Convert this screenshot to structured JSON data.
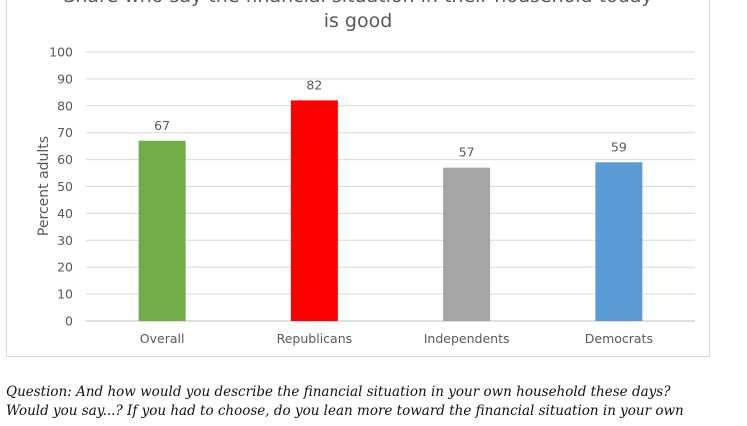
{
  "chart_data": {
    "type": "bar",
    "title_lines": [
      "Share who say the financial situation in their household today",
      "is good"
    ],
    "ylabel": "Percent adults",
    "xlabel": "",
    "ylim": [
      0,
      100
    ],
    "yticks": [
      0,
      10,
      20,
      30,
      40,
      50,
      60,
      70,
      80,
      90,
      100
    ],
    "grid": true,
    "categories": [
      "Overall",
      "Republicans",
      "Independents",
      "Democrats"
    ],
    "values": [
      67,
      82,
      57,
      59
    ],
    "colors": [
      "#70ad47",
      "#ff0000",
      "#a5a5a5",
      "#5b9bd5"
    ]
  },
  "footnote": {
    "line1": "Question: And how would you describe the financial situation in your own household these days?",
    "line2": "Would you say...? If you had to choose, do you lean more toward the financial situation in your own"
  }
}
